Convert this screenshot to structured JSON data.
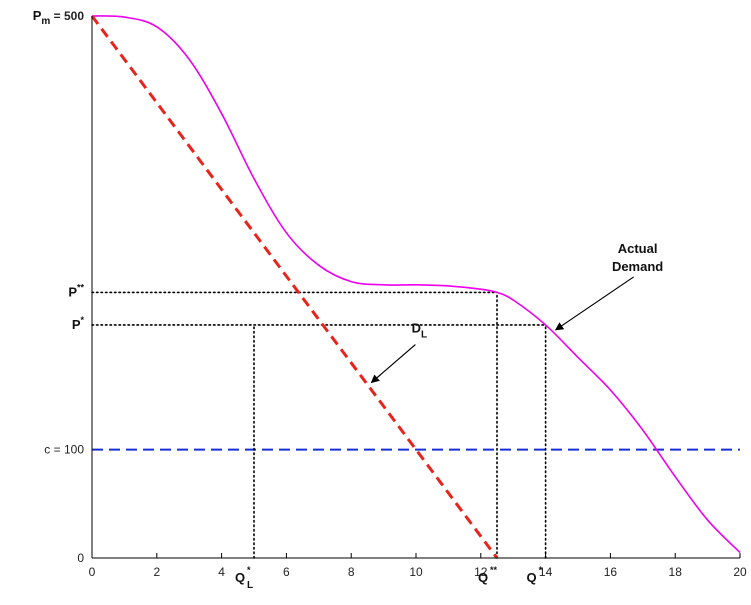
{
  "chart_data": {
    "type": "line",
    "title": "",
    "xlabel": "",
    "ylabel": "",
    "xlim": [
      0,
      20
    ],
    "ylim": [
      0,
      500
    ],
    "grid": false,
    "x_ticks": [
      0,
      2,
      4,
      6,
      8,
      10,
      12,
      14,
      16,
      18,
      20
    ],
    "x_tick_labels": [
      "0",
      "2",
      "4",
      "6",
      "8",
      "10",
      "12",
      "14",
      "16",
      "18",
      "20"
    ],
    "series": [
      {
        "name": "Actual Demand",
        "style": "solid",
        "color": "#ee00ee",
        "x": [
          0,
          1,
          2,
          3,
          4,
          5,
          6,
          7,
          8,
          9,
          10,
          11,
          12,
          12.5,
          13,
          14,
          15,
          16,
          17,
          18,
          19,
          20
        ],
        "y": [
          500,
          499,
          490,
          460,
          410,
          350,
          300,
          270,
          255,
          252,
          252,
          251,
          248,
          245,
          238,
          215,
          185,
          155,
          118,
          75,
          35,
          5
        ]
      },
      {
        "name": "D_L",
        "style": "dashed",
        "color": "#e8231b",
        "x": [
          0,
          12.5
        ],
        "y": [
          500,
          0
        ]
      }
    ],
    "reference_lines": [
      {
        "kind": "horizontal",
        "y": 100,
        "color": "#1a2fd6",
        "style": "dashed"
      },
      {
        "kind": "horizontal",
        "y": 245,
        "x_from": 0,
        "x_to": 12.5,
        "style": "dotted"
      },
      {
        "kind": "horizontal",
        "y": 215,
        "x_from": 0,
        "x_to": 14,
        "style": "dotted"
      },
      {
        "kind": "vertical",
        "x": 5,
        "y_from": 0,
        "y_to": 215,
        "style": "dotted"
      },
      {
        "kind": "vertical",
        "x": 12.5,
        "y_from": 0,
        "y_to": 245,
        "style": "dotted"
      },
      {
        "kind": "vertical",
        "x": 14,
        "y_from": 0,
        "y_to": 215,
        "style": "dotted"
      }
    ],
    "y_annotations": [
      {
        "main": "P",
        "sub": "m",
        "suffix": " = 500",
        "y": 500
      },
      {
        "main": "P",
        "sup": "**",
        "y": 245
      },
      {
        "main": "P",
        "sup": "*",
        "y": 215
      },
      {
        "main": "c = 100",
        "y": 100
      },
      {
        "main": "0",
        "y": 0
      }
    ],
    "x_annotations": [
      {
        "main": "Q",
        "sup": "*",
        "sub": "L",
        "x": 5
      },
      {
        "main": "Q",
        "sup": "**",
        "x": 12.5
      },
      {
        "main": "Q",
        "sup": "*",
        "x": 14
      }
    ],
    "callouts": [
      {
        "lines": [
          "Actual",
          "Demand"
        ],
        "target": {
          "x": 14,
          "y": 215
        }
      },
      {
        "main": "D",
        "sub": "L",
        "target": {
          "x": 8.5,
          "y": 160
        }
      }
    ]
  }
}
